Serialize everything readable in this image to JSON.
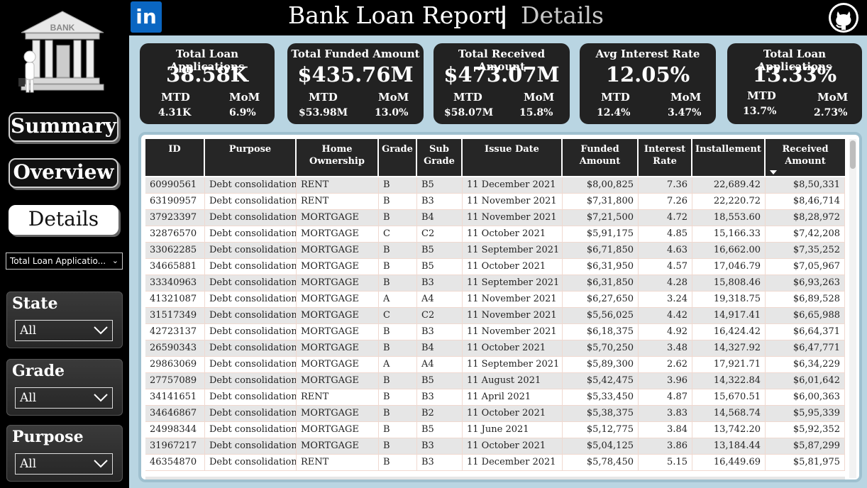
{
  "sidebar": {
    "logo_text": "BANK",
    "nav": [
      {
        "label": "Summary",
        "active": false
      },
      {
        "label": "Overview",
        "active": false
      },
      {
        "label": "Details",
        "active": true
      }
    ],
    "measure_selector": "Total Loan Applicatio...",
    "slicers": [
      {
        "title": "State",
        "value": "All"
      },
      {
        "title": "Grade",
        "value": "All"
      },
      {
        "title": "Purpose",
        "value": "All"
      }
    ]
  },
  "header": {
    "linkedin": "in",
    "title": "Bank Loan Report",
    "separator": "|",
    "subtitle": "Details"
  },
  "kpis": [
    {
      "title": "Total Loan Applications",
      "value": "38.58K",
      "mtd_label": "MTD",
      "mom_label": "MoM",
      "mtd": "4.31K",
      "mom": "6.9%"
    },
    {
      "title": "Total Funded Amount",
      "value": "$435.76M",
      "mtd_label": "MTD",
      "mom_label": "MoM",
      "mtd": "$53.98M",
      "mom": "13.0%"
    },
    {
      "title": "Total Received Amount",
      "value": "$473.07M",
      "mtd_label": "MTD",
      "mom_label": "MoM",
      "mtd": "$58.07M",
      "mom": "15.8%"
    },
    {
      "title": "Avg Interest Rate",
      "value": "12.05%",
      "mtd_label": "MTD",
      "mom_label": "MoM",
      "mtd": "12.4%",
      "mom": "3.47%"
    },
    {
      "title": "Total Loan Applications",
      "value": "13.33%",
      "mtd_label": "MTD",
      "mom_label": "MoM",
      "mtd": "13.7%",
      "mom": "2.73%"
    }
  ],
  "table": {
    "columns": [
      "ID",
      "Purpose",
      "Home Ownership",
      "Grade",
      "Sub Grade",
      "Issue Date",
      "Funded Amount",
      "Interest Rate",
      "Installement",
      "Received Amount"
    ],
    "rows": [
      [
        "60990561",
        "Debt consolidation",
        "RENT",
        "B",
        "B5",
        "11 December 2021",
        "$8,00,825",
        "7.36",
        "22,689.42",
        "$8,50,331"
      ],
      [
        "63190957",
        "Debt consolidation",
        "RENT",
        "B",
        "B3",
        "11 November 2021",
        "$7,31,800",
        "7.26",
        "22,220.72",
        "$8,46,714"
      ],
      [
        "37923397",
        "Debt consolidation",
        "MORTGAGE",
        "B",
        "B4",
        "11 November 2021",
        "$7,21,500",
        "4.72",
        "18,553.60",
        "$8,28,972"
      ],
      [
        "32876570",
        "Debt consolidation",
        "MORTGAGE",
        "C",
        "C2",
        "11 October 2021",
        "$5,91,175",
        "4.85",
        "15,166.33",
        "$7,42,208"
      ],
      [
        "33062285",
        "Debt consolidation",
        "MORTGAGE",
        "B",
        "B5",
        "11 September 2021",
        "$6,71,850",
        "4.63",
        "16,662.00",
        "$7,35,252"
      ],
      [
        "34665881",
        "Debt consolidation",
        "MORTGAGE",
        "B",
        "B5",
        "11 October 2021",
        "$6,31,950",
        "4.57",
        "17,046.79",
        "$7,05,967"
      ],
      [
        "33340963",
        "Debt consolidation",
        "MORTGAGE",
        "B",
        "B3",
        "11 September 2021",
        "$6,31,850",
        "4.28",
        "15,808.46",
        "$6,93,263"
      ],
      [
        "41321087",
        "Debt consolidation",
        "MORTGAGE",
        "A",
        "A4",
        "11 November 2021",
        "$6,27,650",
        "3.24",
        "19,318.75",
        "$6,89,528"
      ],
      [
        "31517349",
        "Debt consolidation",
        "MORTGAGE",
        "C",
        "C2",
        "11 November 2021",
        "$5,56,025",
        "4.42",
        "14,917.41",
        "$6,65,988"
      ],
      [
        "42723137",
        "Debt consolidation",
        "MORTGAGE",
        "B",
        "B3",
        "11 November 2021",
        "$6,18,375",
        "4.92",
        "16,424.42",
        "$6,64,371"
      ],
      [
        "26590343",
        "Debt consolidation",
        "MORTGAGE",
        "B",
        "B4",
        "11 October 2021",
        "$5,70,250",
        "3.48",
        "14,327.92",
        "$6,47,771"
      ],
      [
        "29863069",
        "Debt consolidation",
        "MORTGAGE",
        "A",
        "A4",
        "11 September 2021",
        "$5,89,300",
        "2.62",
        "17,921.71",
        "$6,34,229"
      ],
      [
        "27757089",
        "Debt consolidation",
        "MORTGAGE",
        "B",
        "B5",
        "11 August 2021",
        "$5,42,475",
        "3.96",
        "14,322.84",
        "$6,01,642"
      ],
      [
        "34141651",
        "Debt consolidation",
        "RENT",
        "B",
        "B3",
        "11 April 2021",
        "$5,33,450",
        "4.87",
        "15,670.51",
        "$6,00,363"
      ],
      [
        "34646867",
        "Debt consolidation",
        "MORTGAGE",
        "B",
        "B2",
        "11 October 2021",
        "$5,38,375",
        "3.83",
        "14,568.74",
        "$5,95,339"
      ],
      [
        "24998344",
        "Debt consolidation",
        "MORTGAGE",
        "B",
        "B5",
        "11 June 2021",
        "$5,12,775",
        "3.84",
        "13,742.20",
        "$5,92,352"
      ],
      [
        "31967217",
        "Debt consolidation",
        "MORTGAGE",
        "B",
        "B3",
        "11 October 2021",
        "$5,04,125",
        "3.86",
        "13,184.44",
        "$5,87,299"
      ],
      [
        "46354870",
        "Debt consolidation",
        "RENT",
        "B",
        "B3",
        "11 December 2021",
        "$5,78,450",
        "5.15",
        "16,449.69",
        "$5,81,975"
      ]
    ]
  },
  "colors": {
    "panel_bg": "#b9d5e2",
    "kpi_bg": "#222222",
    "linkedin": "#0a66c2"
  }
}
